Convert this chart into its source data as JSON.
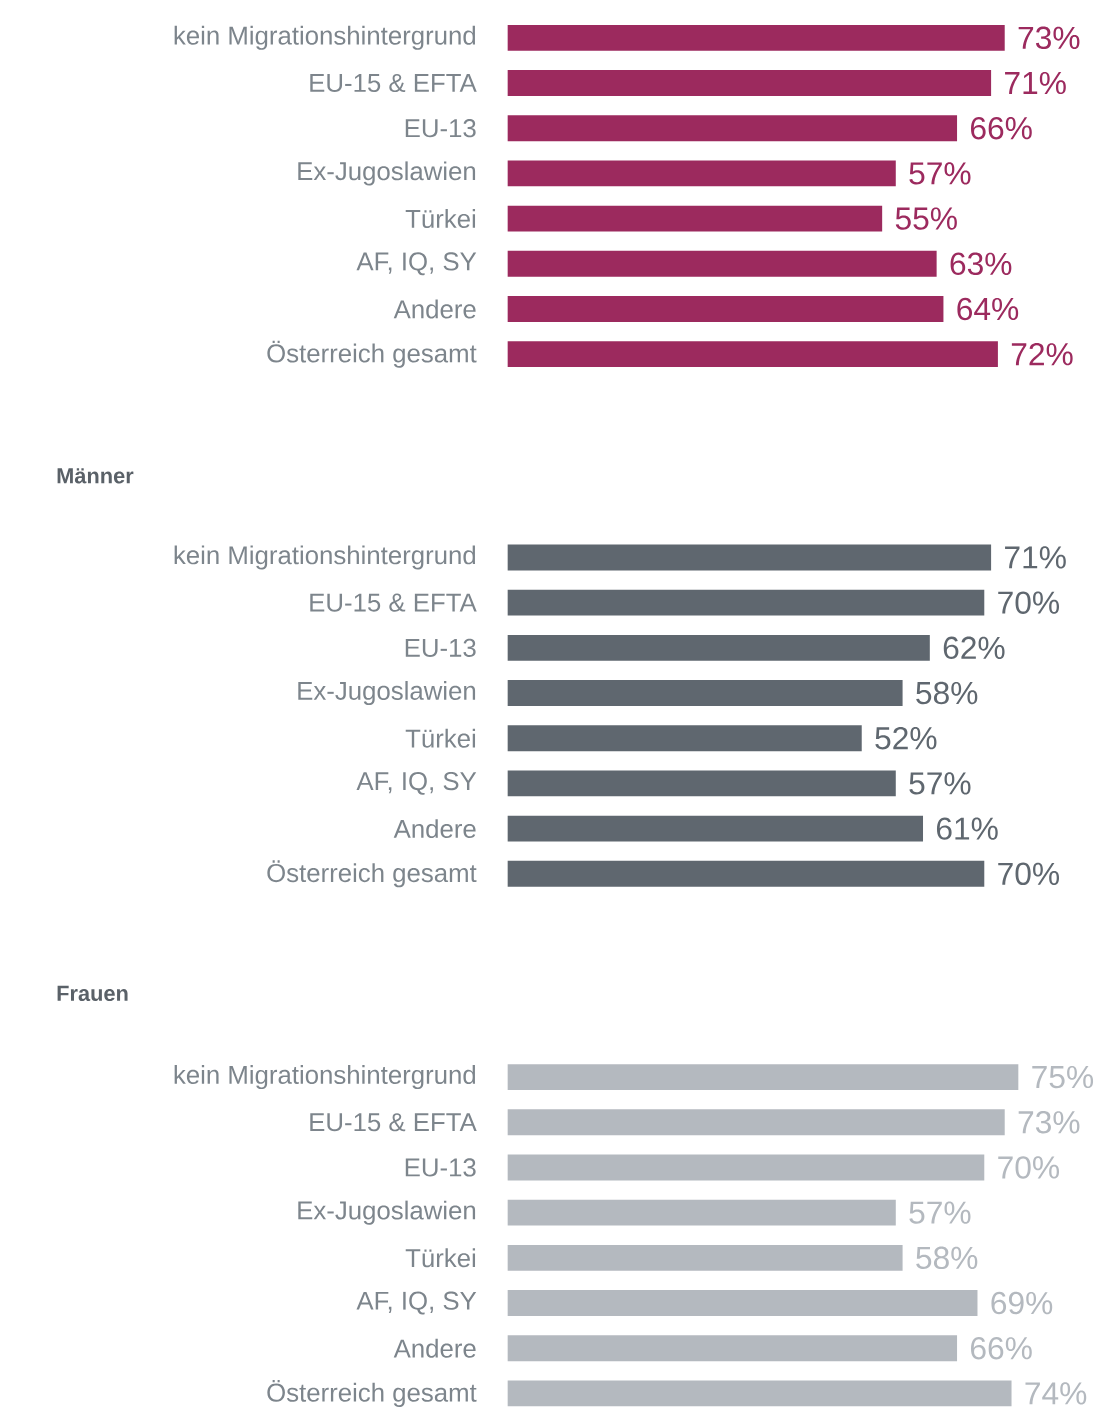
{
  "chart_data": [
    {
      "type": "bar",
      "orientation": "horizontal",
      "color": "#9c2a5e",
      "categories": [
        "kein Migrationshintergrund",
        "EU-15 & EFTA",
        "EU-13",
        "Ex-Jugoslawien",
        "Türkei",
        "AF, IQ, SY",
        "Andere",
        "Österreich gesamt"
      ],
      "values": [
        73,
        71,
        66,
        57,
        55,
        63,
        64,
        72
      ],
      "value_labels": [
        "73%",
        "71%",
        "66%",
        "57%",
        "55%",
        "63%",
        "64%",
        "72%"
      ]
    },
    {
      "type": "bar",
      "orientation": "horizontal",
      "title": "Männer",
      "color": "#5f676f",
      "categories": [
        "kein Migrationshintergrund",
        "EU-15 & EFTA",
        "EU-13",
        "Ex-Jugoslawien",
        "Türkei",
        "AF, IQ, SY",
        "Andere",
        "Österreich gesamt"
      ],
      "values": [
        71,
        70,
        62,
        58,
        52,
        57,
        61,
        70
      ],
      "value_labels": [
        "71%",
        "70%",
        "62%",
        "58%",
        "52%",
        "57%",
        "61%",
        "70%"
      ]
    },
    {
      "type": "bar",
      "orientation": "horizontal",
      "title": "Frauen",
      "color": "#b4b9bf",
      "categories": [
        "kein Migrationshintergrund",
        "EU-15 & EFTA",
        "EU-13",
        "Ex-Jugoslawien",
        "Türkei",
        "AF, IQ, SY",
        "Andere",
        "Österreich gesamt"
      ],
      "values": [
        75,
        73,
        70,
        57,
        58,
        69,
        66,
        74
      ],
      "value_labels": [
        "75%",
        "73%",
        "70%",
        "57%",
        "58%",
        "69%",
        "66%",
        "74%"
      ]
    }
  ]
}
